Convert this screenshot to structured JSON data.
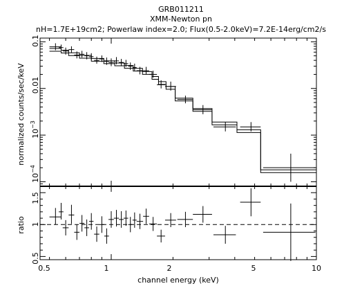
{
  "chart_data": [
    {
      "type": "scatter",
      "title": "GRB011211",
      "subtitle": "XMM-Newton pn",
      "annotation": "nH=1.7E+19cm2; Powerlaw index=2.0; Flux(0.5-2.0keV)=7.2E-14erg/cm2/s",
      "ylabel": "normalized counts/sec/keV",
      "xlabel": "",
      "xscale": "log",
      "yscale": "log",
      "xlim": [
        0.45,
        10
      ],
      "ylim": [
        8e-05,
        0.12
      ],
      "ytick_labels": [
        "0.1",
        "0.01",
        "10^-3",
        "10^-4"
      ],
      "points": [
        {
          "x": 0.535,
          "xerr": [
            0.035,
            0.035
          ],
          "y": 0.078,
          "yerr": [
            0.012,
            0.015
          ]
        },
        {
          "x": 0.57,
          "xerr": [
            0.015,
            0.015
          ],
          "y": 0.075,
          "yerr": [
            0.01,
            0.012
          ]
        },
        {
          "x": 0.6,
          "xerr": [
            0.02,
            0.02
          ],
          "y": 0.063,
          "yerr": [
            0.01,
            0.012
          ]
        },
        {
          "x": 0.64,
          "xerr": [
            0.02,
            0.02
          ],
          "y": 0.068,
          "yerr": [
            0.01,
            0.012
          ]
        },
        {
          "x": 0.68,
          "xerr": [
            0.02,
            0.02
          ],
          "y": 0.052,
          "yerr": [
            0.008,
            0.01
          ]
        },
        {
          "x": 0.72,
          "xerr": [
            0.02,
            0.02
          ],
          "y": 0.054,
          "yerr": [
            0.008,
            0.01
          ]
        },
        {
          "x": 0.76,
          "xerr": [
            0.02,
            0.02
          ],
          "y": 0.05,
          "yerr": [
            0.008,
            0.01
          ]
        },
        {
          "x": 0.8,
          "xerr": [
            0.02,
            0.02
          ],
          "y": 0.048,
          "yerr": [
            0.007,
            0.009
          ]
        },
        {
          "x": 0.85,
          "xerr": [
            0.025,
            0.025
          ],
          "y": 0.04,
          "yerr": [
            0.006,
            0.008
          ]
        },
        {
          "x": 0.9,
          "xerr": [
            0.025,
            0.025
          ],
          "y": 0.043,
          "yerr": [
            0.006,
            0.008
          ]
        },
        {
          "x": 0.95,
          "xerr": [
            0.025,
            0.025
          ],
          "y": 0.038,
          "yerr": [
            0.006,
            0.008
          ]
        },
        {
          "x": 1.0,
          "xerr": [
            0.03,
            0.03
          ],
          "y": 0.036,
          "yerr": [
            0.006,
            0.008
          ]
        },
        {
          "x": 1.06,
          "xerr": [
            0.03,
            0.03
          ],
          "y": 0.039,
          "yerr": [
            0.006,
            0.008
          ]
        },
        {
          "x": 1.12,
          "xerr": [
            0.03,
            0.03
          ],
          "y": 0.036,
          "yerr": [
            0.006,
            0.007
          ]
        },
        {
          "x": 1.18,
          "xerr": [
            0.03,
            0.03
          ],
          "y": 0.034,
          "yerr": [
            0.005,
            0.007
          ]
        },
        {
          "x": 1.24,
          "xerr": [
            0.03,
            0.03
          ],
          "y": 0.03,
          "yerr": [
            0.005,
            0.006
          ]
        },
        {
          "x": 1.3,
          "xerr": [
            0.03,
            0.03
          ],
          "y": 0.028,
          "yerr": [
            0.004,
            0.006
          ]
        },
        {
          "x": 1.38,
          "xerr": [
            0.05,
            0.05
          ],
          "y": 0.024,
          "yerr": [
            0.004,
            0.005
          ]
        },
        {
          "x": 1.48,
          "xerr": [
            0.05,
            0.05
          ],
          "y": 0.024,
          "yerr": [
            0.004,
            0.005
          ]
        },
        {
          "x": 1.6,
          "xerr": [
            0.07,
            0.07
          ],
          "y": 0.02,
          "yerr": [
            0.003,
            0.004
          ]
        },
        {
          "x": 1.75,
          "xerr": [
            0.08,
            0.08
          ],
          "y": 0.012,
          "yerr": [
            0.002,
            0.003
          ]
        },
        {
          "x": 1.95,
          "xerr": [
            0.12,
            0.12
          ],
          "y": 0.011,
          "yerr": [
            0.002,
            0.003
          ]
        },
        {
          "x": 2.3,
          "xerr": [
            0.2,
            0.2
          ],
          "y": 0.0058,
          "yerr": [
            0.001,
            0.0012
          ]
        },
        {
          "x": 2.8,
          "xerr": [
            0.3,
            0.3
          ],
          "y": 0.0035,
          "yerr": [
            0.0007,
            0.0009
          ]
        },
        {
          "x": 3.6,
          "xerr": [
            0.45,
            0.45
          ],
          "y": 0.0015,
          "yerr": [
            0.0003,
            0.0004
          ]
        },
        {
          "x": 4.8,
          "xerr": [
            0.55,
            0.55
          ],
          "y": 0.0015,
          "yerr": [
            0.0003,
            0.0004
          ]
        },
        {
          "x": 7.5,
          "xerr": [
            2.0,
            2.4
          ],
          "y": 0.0002,
          "yerr": [
            0.0001,
            0.0002
          ]
        }
      ],
      "model_steps": [
        {
          "x0": 0.5,
          "x1": 0.57,
          "y": 0.072
        },
        {
          "x0": 0.57,
          "x1": 0.62,
          "y": 0.066
        },
        {
          "x0": 0.62,
          "x1": 0.7,
          "y": 0.058
        },
        {
          "x0": 0.7,
          "x1": 0.8,
          "y": 0.051
        },
        {
          "x0": 0.8,
          "x1": 0.92,
          "y": 0.044
        },
        {
          "x0": 0.92,
          "x1": 1.04,
          "y": 0.039
        },
        {
          "x0": 1.04,
          "x1": 1.16,
          "y": 0.035
        },
        {
          "x0": 1.16,
          "x1": 1.28,
          "y": 0.031
        },
        {
          "x0": 1.28,
          "x1": 1.42,
          "y": 0.027
        },
        {
          "x0": 1.42,
          "x1": 1.58,
          "y": 0.023
        },
        {
          "x0": 1.58,
          "x1": 1.7,
          "y": 0.018
        },
        {
          "x0": 1.7,
          "x1": 1.85,
          "y": 0.014
        },
        {
          "x0": 1.85,
          "x1": 2.05,
          "y": 0.011
        },
        {
          "x0": 2.05,
          "x1": 2.5,
          "y": 0.0062
        },
        {
          "x0": 2.5,
          "x1": 3.1,
          "y": 0.0037
        },
        {
          "x0": 3.1,
          "x1": 4.1,
          "y": 0.0019
        },
        {
          "x0": 4.1,
          "x1": 5.35,
          "y": 0.0013
        },
        {
          "x0": 5.35,
          "x1": 10.0,
          "y": 0.00018
        }
      ],
      "legend": "none",
      "grid": false
    },
    {
      "type": "scatter",
      "ylabel": "ratio",
      "xlabel": "channel energy (keV)",
      "xscale": "log",
      "yscale": "linear",
      "xlim": [
        0.45,
        10
      ],
      "ylim": [
        0.45,
        1.6
      ],
      "ytick_labels": [
        "1.5",
        "1",
        "0.5"
      ],
      "xtick_labels": [
        "0.5",
        "1",
        "2",
        "5",
        "10"
      ],
      "reference_line": 1.0,
      "points": [
        {
          "x": 0.535,
          "xerr": [
            0.035,
            0.035
          ],
          "y": 1.12,
          "yerr": [
            0.12,
            0.14
          ]
        },
        {
          "x": 0.57,
          "xerr": [
            0.015,
            0.015
          ],
          "y": 1.2,
          "yerr": [
            0.12,
            0.14
          ]
        },
        {
          "x": 0.6,
          "xerr": [
            0.02,
            0.02
          ],
          "y": 0.95,
          "yerr": [
            0.12,
            0.12
          ]
        },
        {
          "x": 0.64,
          "xerr": [
            0.02,
            0.02
          ],
          "y": 1.15,
          "yerr": [
            0.14,
            0.16
          ]
        },
        {
          "x": 0.68,
          "xerr": [
            0.02,
            0.02
          ],
          "y": 0.88,
          "yerr": [
            0.12,
            0.12
          ]
        },
        {
          "x": 0.72,
          "xerr": [
            0.02,
            0.02
          ],
          "y": 1.02,
          "yerr": [
            0.13,
            0.13
          ]
        },
        {
          "x": 0.76,
          "xerr": [
            0.02,
            0.02
          ],
          "y": 0.95,
          "yerr": [
            0.13,
            0.13
          ]
        },
        {
          "x": 0.8,
          "xerr": [
            0.02,
            0.02
          ],
          "y": 1.05,
          "yerr": [
            0.13,
            0.13
          ]
        },
        {
          "x": 0.85,
          "xerr": [
            0.025,
            0.025
          ],
          "y": 0.85,
          "yerr": [
            0.12,
            0.12
          ]
        },
        {
          "x": 0.9,
          "xerr": [
            0.025,
            0.025
          ],
          "y": 1.0,
          "yerr": [
            0.13,
            0.13
          ]
        },
        {
          "x": 0.95,
          "xerr": [
            0.025,
            0.025
          ],
          "y": 0.82,
          "yerr": [
            0.12,
            0.12
          ]
        },
        {
          "x": 1.0,
          "xerr": [
            0.03,
            0.03
          ],
          "y": 1.08,
          "yerr": [
            0.13,
            0.13
          ]
        },
        {
          "x": 1.06,
          "xerr": [
            0.03,
            0.03
          ],
          "y": 1.1,
          "yerr": [
            0.13,
            0.13
          ]
        },
        {
          "x": 1.12,
          "xerr": [
            0.03,
            0.03
          ],
          "y": 1.08,
          "yerr": [
            0.13,
            0.13
          ]
        },
        {
          "x": 1.18,
          "xerr": [
            0.03,
            0.03
          ],
          "y": 1.1,
          "yerr": [
            0.12,
            0.12
          ]
        },
        {
          "x": 1.24,
          "xerr": [
            0.03,
            0.03
          ],
          "y": 1.0,
          "yerr": [
            0.12,
            0.12
          ]
        },
        {
          "x": 1.3,
          "xerr": [
            0.03,
            0.03
          ],
          "y": 1.07,
          "yerr": [
            0.12,
            0.12
          ]
        },
        {
          "x": 1.38,
          "xerr": [
            0.05,
            0.05
          ],
          "y": 1.05,
          "yerr": [
            0.12,
            0.12
          ]
        },
        {
          "x": 1.48,
          "xerr": [
            0.05,
            0.05
          ],
          "y": 1.13,
          "yerr": [
            0.12,
            0.12
          ]
        },
        {
          "x": 1.6,
          "xerr": [
            0.07,
            0.07
          ],
          "y": 1.01,
          "yerr": [
            0.11,
            0.11
          ]
        },
        {
          "x": 1.75,
          "xerr": [
            0.08,
            0.08
          ],
          "y": 0.82,
          "yerr": [
            0.1,
            0.1
          ]
        },
        {
          "x": 1.95,
          "xerr": [
            0.12,
            0.12
          ],
          "y": 1.07,
          "yerr": [
            0.11,
            0.11
          ]
        },
        {
          "x": 2.3,
          "xerr": [
            0.2,
            0.2
          ],
          "y": 1.08,
          "yerr": [
            0.12,
            0.12
          ]
        },
        {
          "x": 2.8,
          "xerr": [
            0.3,
            0.3
          ],
          "y": 1.16,
          "yerr": [
            0.13,
            0.13
          ]
        },
        {
          "x": 3.6,
          "xerr": [
            0.45,
            0.45
          ],
          "y": 0.84,
          "yerr": [
            0.14,
            0.14
          ]
        },
        {
          "x": 4.8,
          "xerr": [
            0.55,
            0.55
          ],
          "y": 1.35,
          "yerr": [
            0.22,
            0.22
          ]
        },
        {
          "x": 7.5,
          "xerr": [
            2.0,
            2.4
          ],
          "y": 0.88,
          "yerr": [
            0.45,
            0.45
          ]
        }
      ],
      "legend": "none",
      "grid": false
    }
  ]
}
